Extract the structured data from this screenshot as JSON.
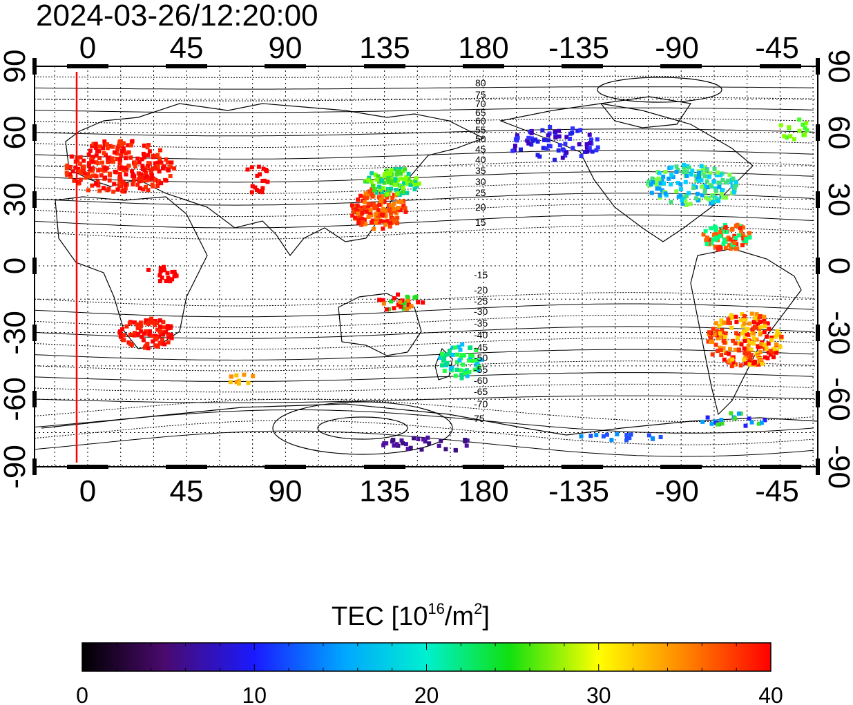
{
  "timestamp": "2024-03-26/12:20:00",
  "lon_labels": [
    "0",
    "45",
    "90",
    "135",
    "180",
    "-135",
    "-90",
    "-45"
  ],
  "lat_labels": [
    "90",
    "60",
    "30",
    "0",
    "-30",
    "-60",
    "-90"
  ],
  "contour_labels_north": [
    "80",
    "75",
    "70",
    "65",
    "60",
    "55",
    "50",
    "45",
    "40",
    "35",
    "30",
    "25",
    "20",
    "15"
  ],
  "contour_labels_south": [
    "-15",
    "-20",
    "-25",
    "-30",
    "-35",
    "-40",
    "-45",
    "-50",
    "-55",
    "-60",
    "-65",
    "-70",
    "75"
  ],
  "colorbar": {
    "title_main": "TEC  [10",
    "title_sup1": "16",
    "title_mid": "/m",
    "title_sup2": "2",
    "title_end": "]",
    "tick_labels": [
      "0",
      "10",
      "20",
      "30",
      "40"
    ],
    "min": 0,
    "max": 40
  },
  "colors": {
    "terminator": "#ff0000",
    "land_outline": "#000000",
    "grid": "#000000"
  }
}
